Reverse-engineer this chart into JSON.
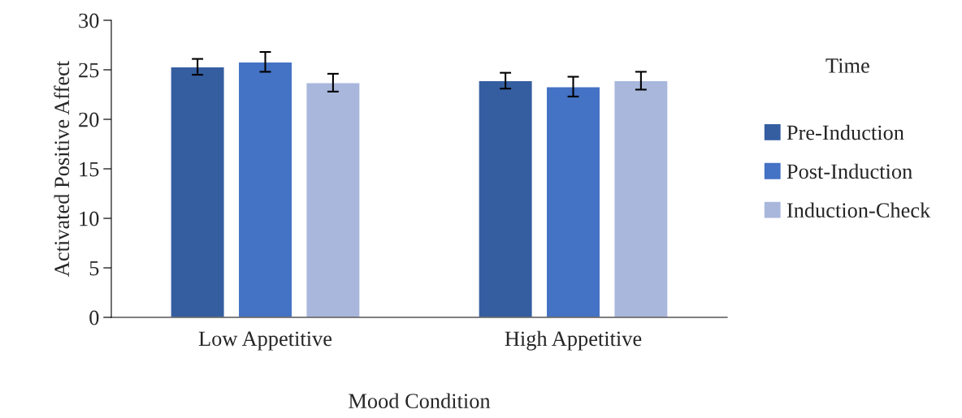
{
  "chart_data": {
    "type": "bar",
    "xlabel": "Mood Condition",
    "ylabel": "Activated Positive Affect",
    "legend_title": "Time",
    "categories": [
      "Low Appetitive",
      "High Appetitive"
    ],
    "series": [
      {
        "name": "Pre-Induction",
        "color": "#355ea1",
        "values": [
          25.3,
          23.9
        ],
        "errors": [
          0.8,
          0.8
        ]
      },
      {
        "name": "Post-Induction",
        "color": "#4472c4",
        "values": [
          25.8,
          23.3
        ],
        "errors": [
          1.0,
          1.0
        ]
      },
      {
        "name": "Induction-Check",
        "color": "#a9b7dc",
        "values": [
          23.7,
          23.9
        ],
        "errors": [
          0.9,
          0.9
        ]
      }
    ],
    "ylim": [
      0,
      30
    ],
    "yticks": [
      0,
      5,
      10,
      15,
      20,
      25,
      30
    ],
    "grid": false,
    "legend": "right"
  }
}
